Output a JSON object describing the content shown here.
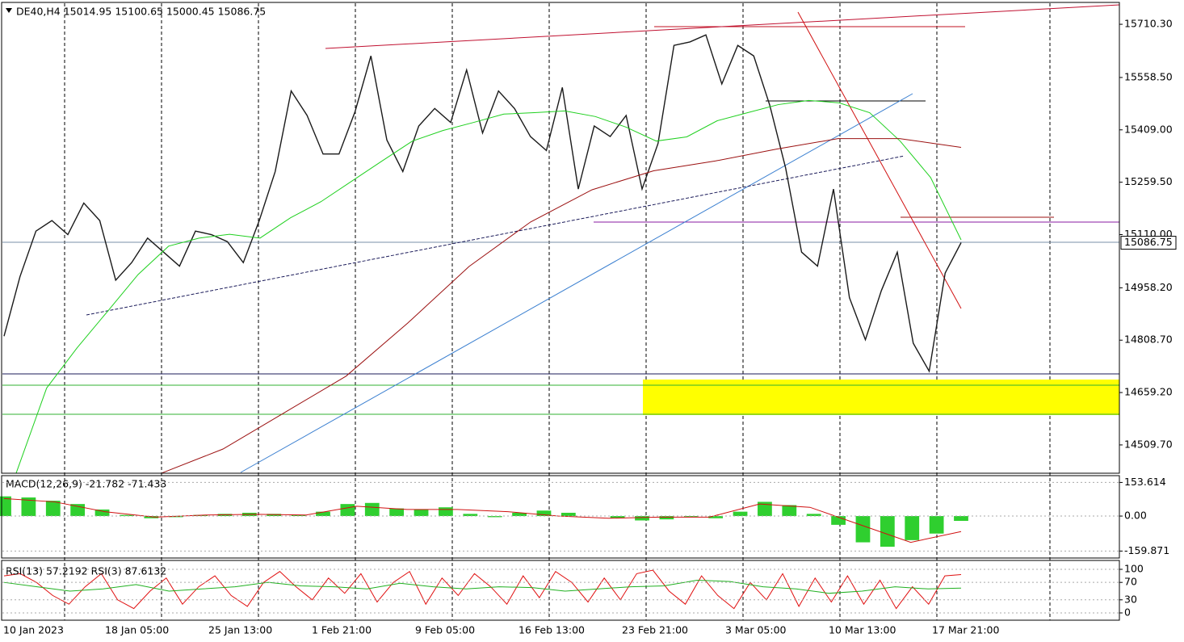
{
  "x_labels": [
    "10 Jan 2023",
    "18 Jan 05:00",
    "25 Jan 13:00",
    "1 Feb 21:00",
    "9 Feb 05:00",
    "16 Feb 13:00",
    "23 Feb 21:00",
    "3 Mar 05:00",
    "10 Mar 13:00",
    "17 Mar 21:00"
  ],
  "chart_data": [
    {
      "type": "line",
      "title": "DE40,H4  15014.95 15100.65 15000.45 15086.75",
      "ylim": [
        14428.9,
        15770.4
      ],
      "yticks": [
        {
          "value": 15710.3,
          "label": "15710.30"
        },
        {
          "value": 15558.5,
          "label": "15558.50"
        },
        {
          "value": 15409,
          "label": "15409.00"
        },
        {
          "value": 15259.5,
          "label": "15259.50"
        },
        {
          "value": 15110,
          "label": "15110.00"
        },
        {
          "value": 14958.2,
          "label": "14958.20"
        },
        {
          "value": 14808.7,
          "label": "14808.70"
        },
        {
          "value": 14659.2,
          "label": "14659.20"
        },
        {
          "value": 14509.7,
          "label": "14509.70"
        }
      ],
      "current_price": 15086.75,
      "series": [
        {
          "color": "#1a1a1a",
          "style": "line",
          "values": [
            14820,
            14990,
            15120,
            15150,
            15110,
            15200,
            15150,
            14980,
            15030,
            15100,
            15060,
            15020,
            15120,
            15110,
            15090,
            15030,
            15150,
            15290,
            15520,
            15450,
            15340,
            15340,
            15460,
            15620,
            15380,
            15290,
            15420,
            15470,
            15430,
            15580,
            15400,
            15520,
            15470,
            15390,
            15350,
            15530,
            15240,
            15420,
            15390,
            15450,
            15240,
            15370,
            15650,
            15660,
            15680,
            15540,
            15650,
            15620,
            15480,
            15300,
            15060,
            15020,
            15240,
            14930,
            14810,
            14950,
            15060,
            14800,
            14720,
            15000,
            15087
          ]
        },
        {
          "color": "#1fd01f",
          "style": "line",
          "start": 20,
          "values": [
            14429,
            14672,
            14787,
            14891,
            14996,
            15077,
            15100,
            15111,
            15100,
            15158,
            15204,
            15262,
            15320,
            15377,
            15407,
            15430,
            15454,
            15458,
            15463,
            15447,
            15417,
            15377,
            15389,
            15435,
            15458,
            15481,
            15493,
            15486,
            15458,
            15377,
            15273,
            15095
          ]
        },
        {
          "color": "#9b1010",
          "style": "line",
          "start": 200,
          "values": [
            14429,
            14498,
            14602,
            14706,
            14857,
            15019,
            15146,
            15238,
            15292,
            15320,
            15354,
            15384,
            15384,
            15359
          ]
        }
      ]
    },
    {
      "type": "bar",
      "title": "MACD(12,26,9) -21.782 -71.433",
      "ylim": [
        -188,
        181
      ],
      "yticks": [
        153.614,
        {
          "value": 0,
          "label": "0.00"
        },
        -159.871
      ],
      "series": [
        {
          "color": "#2fcf2f",
          "style": "bar",
          "values": [
            90,
            85,
            70,
            55,
            30,
            5,
            -10,
            -5,
            5,
            10,
            15,
            10,
            5,
            20,
            55,
            60,
            35,
            30,
            40,
            10,
            -5,
            15,
            25,
            15,
            0,
            -10,
            -20,
            -15,
            -5,
            -10,
            20,
            65,
            50,
            10,
            -40,
            -120,
            -140,
            -110,
            -80,
            -22
          ]
        },
        {
          "color": "#d01010",
          "style": "line",
          "values": [
            80,
            65,
            20,
            -5,
            5,
            8,
            5,
            45,
            30,
            30,
            20,
            0,
            -10,
            -5,
            -5,
            55,
            40,
            -40,
            -120,
            -71
          ]
        }
      ]
    },
    {
      "type": "line",
      "title": "RSI(13) 57.2192  RSI(3) 87.6132",
      "ylim": [
        -16.7,
        118.5
      ],
      "yticks": [
        100,
        70,
        30,
        0
      ],
      "series": [
        {
          "color": "#e01010",
          "style": "line",
          "values": [
            85,
            90,
            70,
            40,
            20,
            60,
            90,
            30,
            10,
            50,
            80,
            20,
            60,
            85,
            40,
            15,
            70,
            95,
            60,
            30,
            80,
            45,
            90,
            25,
            70,
            95,
            20,
            80,
            40,
            90,
            60,
            20,
            85,
            35,
            95,
            70,
            25,
            80,
            30,
            90,
            98,
            50,
            20,
            85,
            40,
            10,
            70,
            30,
            90,
            15,
            80,
            25,
            85,
            20,
            75,
            10,
            60,
            20,
            85,
            88
          ]
        },
        {
          "color": "#20b020",
          "style": "line",
          "values": [
            70,
            60,
            50,
            55,
            65,
            50,
            55,
            60,
            70,
            62,
            60,
            55,
            68,
            60,
            55,
            60,
            58,
            50,
            55,
            60,
            62,
            75,
            72,
            60,
            55,
            45,
            50,
            60,
            55,
            57
          ]
        }
      ]
    }
  ]
}
